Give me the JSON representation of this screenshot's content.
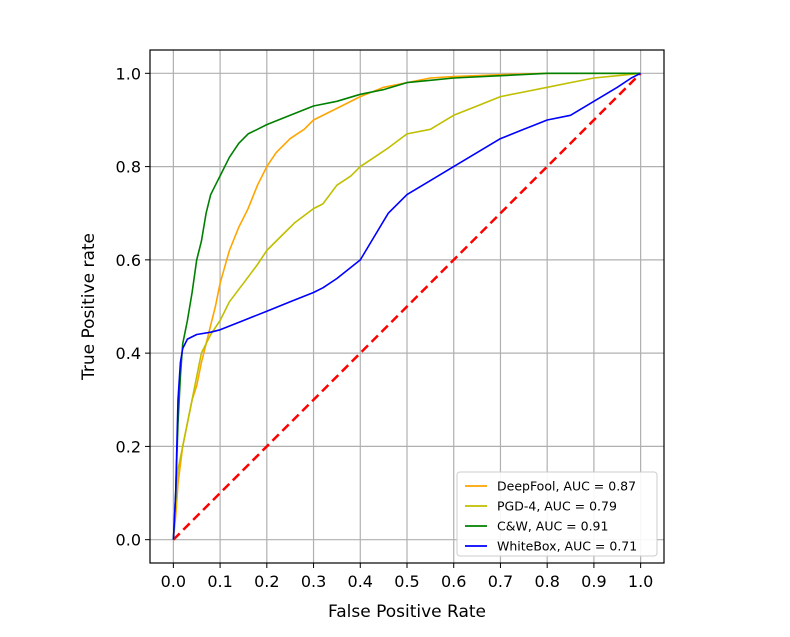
{
  "chart_data": {
    "type": "line",
    "title": "",
    "xlabel": "False Positive Rate",
    "ylabel": "True Positive rate",
    "xlim": [
      -0.05,
      1.05
    ],
    "ylim": [
      -0.05,
      1.05
    ],
    "x_ticks": [
      0.0,
      0.1,
      0.2,
      0.3,
      0.4,
      0.5,
      0.6,
      0.7,
      0.8,
      0.9,
      1.0
    ],
    "x_tick_labels": [
      "0.0",
      "0.1",
      "0.2",
      "0.3",
      "0.4",
      "0.5",
      "0.6",
      "0.7",
      "0.8",
      "0.9",
      "1.0"
    ],
    "y_ticks": [
      0.0,
      0.2,
      0.4,
      0.6,
      0.8,
      1.0
    ],
    "y_tick_labels": [
      "0.0",
      "0.2",
      "0.4",
      "0.6",
      "0.8",
      "1.0"
    ],
    "grid": true,
    "legend_position": "lower-right",
    "series": [
      {
        "name": "DeepFool, AUC = 0.87",
        "color": "#ffa500",
        "x": [
          0.0,
          0.005,
          0.01,
          0.02,
          0.03,
          0.04,
          0.05,
          0.06,
          0.07,
          0.08,
          0.09,
          0.1,
          0.12,
          0.14,
          0.16,
          0.18,
          0.2,
          0.22,
          0.25,
          0.28,
          0.3,
          0.33,
          0.36,
          0.4,
          0.45,
          0.5,
          0.55,
          0.6,
          0.7,
          0.8,
          0.9,
          1.0
        ],
        "y": [
          0.0,
          0.05,
          0.12,
          0.2,
          0.25,
          0.3,
          0.33,
          0.38,
          0.42,
          0.46,
          0.5,
          0.55,
          0.62,
          0.67,
          0.71,
          0.76,
          0.8,
          0.83,
          0.86,
          0.88,
          0.9,
          0.915,
          0.93,
          0.95,
          0.97,
          0.98,
          0.99,
          0.993,
          0.997,
          1.0,
          1.0,
          1.0
        ]
      },
      {
        "name": "PGD-4, AUC = 0.79",
        "color": "#bfbf00",
        "x": [
          0.0,
          0.005,
          0.01,
          0.02,
          0.03,
          0.04,
          0.05,
          0.06,
          0.08,
          0.1,
          0.12,
          0.15,
          0.18,
          0.2,
          0.23,
          0.26,
          0.3,
          0.32,
          0.35,
          0.38,
          0.4,
          0.43,
          0.46,
          0.5,
          0.55,
          0.6,
          0.65,
          0.7,
          0.75,
          0.8,
          0.85,
          0.9,
          0.95,
          1.0
        ],
        "y": [
          0.0,
          0.08,
          0.15,
          0.2,
          0.25,
          0.3,
          0.35,
          0.4,
          0.44,
          0.47,
          0.51,
          0.55,
          0.59,
          0.62,
          0.65,
          0.68,
          0.71,
          0.72,
          0.76,
          0.78,
          0.8,
          0.82,
          0.84,
          0.87,
          0.88,
          0.91,
          0.93,
          0.95,
          0.96,
          0.97,
          0.98,
          0.99,
          0.995,
          1.0
        ]
      },
      {
        "name": "C&W, AUC = 0.91",
        "color": "#008000",
        "x": [
          0.0,
          0.005,
          0.01,
          0.015,
          0.02,
          0.03,
          0.04,
          0.05,
          0.06,
          0.07,
          0.08,
          0.09,
          0.1,
          0.12,
          0.14,
          0.16,
          0.18,
          0.2,
          0.25,
          0.3,
          0.35,
          0.4,
          0.45,
          0.5,
          0.55,
          0.6,
          0.7,
          0.8,
          0.9,
          1.0
        ],
        "y": [
          0.0,
          0.1,
          0.25,
          0.35,
          0.42,
          0.47,
          0.53,
          0.6,
          0.64,
          0.7,
          0.74,
          0.76,
          0.78,
          0.82,
          0.85,
          0.87,
          0.88,
          0.89,
          0.91,
          0.93,
          0.94,
          0.955,
          0.965,
          0.98,
          0.985,
          0.99,
          0.995,
          1.0,
          1.0,
          1.0
        ]
      },
      {
        "name": "WhiteBox, AUC = 0.71",
        "color": "#0000ff",
        "x": [
          0.0,
          0.005,
          0.01,
          0.015,
          0.02,
          0.03,
          0.05,
          0.08,
          0.1,
          0.15,
          0.2,
          0.25,
          0.3,
          0.32,
          0.35,
          0.4,
          0.43,
          0.46,
          0.5,
          0.55,
          0.6,
          0.65,
          0.7,
          0.75,
          0.8,
          0.85,
          0.9,
          0.95,
          0.98,
          1.0
        ],
        "y": [
          0.0,
          0.1,
          0.3,
          0.38,
          0.41,
          0.43,
          0.44,
          0.445,
          0.45,
          0.47,
          0.49,
          0.51,
          0.53,
          0.54,
          0.56,
          0.6,
          0.65,
          0.7,
          0.74,
          0.77,
          0.8,
          0.83,
          0.86,
          0.88,
          0.9,
          0.91,
          0.94,
          0.97,
          0.99,
          1.0
        ]
      }
    ],
    "reference_line": {
      "x": [
        0.0,
        1.0
      ],
      "y": [
        0.0,
        1.0
      ],
      "color": "#ff0000",
      "style": "dashed"
    }
  }
}
